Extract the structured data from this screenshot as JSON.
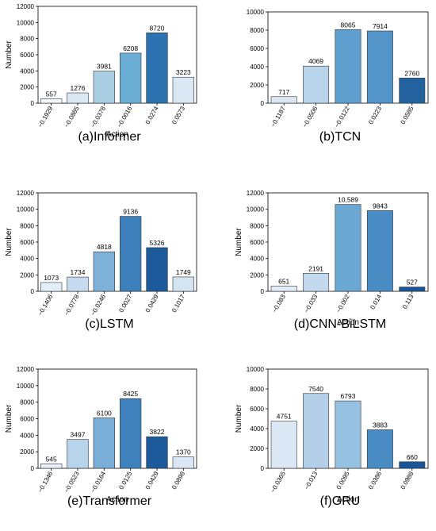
{
  "chart_data": [
    {
      "type": "bar",
      "caption": "(a)Informer",
      "xlabel": "Action",
      "ylabel": "Number",
      "ylim": [
        0,
        12000
      ],
      "yticks": [
        0,
        2000,
        4000,
        6000,
        8000,
        10000,
        12000
      ],
      "categories": [
        "−0.1929",
        "−0.0885",
        "−0.0378",
        "−0.0016",
        "0.0274",
        "0.0573"
      ],
      "values": [
        557,
        1276,
        3981,
        6208,
        8720,
        3223
      ],
      "value_labels": [
        "557",
        "1276",
        "3981",
        "6208",
        "8720",
        "3223"
      ],
      "colors": [
        "#f3f8fd",
        "#dae8f6",
        "#aacfe5",
        "#6aaed6",
        "#2c72b0",
        "#dae8f6"
      ]
    },
    {
      "type": "bar",
      "caption": "(b)TCN",
      "xlabel": "",
      "ylabel": "",
      "ylim": [
        0,
        10000
      ],
      "yticks": [
        0,
        2000,
        4000,
        6000,
        8000,
        10000
      ],
      "categories": [
        "−0.1187",
        "−0.0506",
        "−0.0122",
        "0.0223",
        "0.0585"
      ],
      "values": [
        717,
        4069,
        8065,
        7914,
        2760
      ],
      "value_labels": [
        "717",
        "4069",
        "8065",
        "7914",
        "2760"
      ],
      "colors": [
        "#dae8f6",
        "#b7d4ea",
        "#5e9fcf",
        "#5394c9",
        "#23629f"
      ]
    },
    {
      "type": "bar",
      "caption": "(c)LSTM",
      "xlabel": "",
      "ylabel": "Number",
      "ylim": [
        0,
        12000
      ],
      "yticks": [
        0,
        2000,
        4000,
        6000,
        8000,
        10000,
        12000
      ],
      "categories": [
        "−0.1406",
        "−0.0778",
        "−0.0246",
        "0.0027",
        "0.0429",
        "0.1017"
      ],
      "values": [
        1073,
        1734,
        4818,
        9136,
        5326,
        1749
      ],
      "value_labels": [
        "1073",
        "1734",
        "4818",
        "9136",
        "5326",
        "1749"
      ],
      "colors": [
        "#e4eef9",
        "#c6dbef",
        "#7fb2d9",
        "#3d80bb",
        "#1d5a9c",
        "#d3e4f3"
      ]
    },
    {
      "type": "bar",
      "caption": "(d)CNN-BiLSTM",
      "xlabel": "Action",
      "ylabel": "Number",
      "ylim": [
        0,
        12000
      ],
      "yticks": [
        0,
        2000,
        4000,
        6000,
        8000,
        10000,
        12000
      ],
      "categories": [
        "−0.083",
        "−0.033",
        "−0.002",
        "0.014",
        "0.113"
      ],
      "values": [
        651,
        2191,
        10589,
        9843,
        527
      ],
      "value_labels": [
        "651",
        "2191",
        "10,589",
        "9843",
        "527"
      ],
      "colors": [
        "#e1edf8",
        "#c2d9ee",
        "#6ba8d3",
        "#4a8cc4",
        "#1a5597"
      ]
    },
    {
      "type": "bar",
      "caption": "(e)Transformer",
      "xlabel": "Action",
      "ylabel": "Number",
      "ylim": [
        0,
        12000
      ],
      "yticks": [
        0,
        2000,
        4000,
        6000,
        8000,
        10000,
        12000
      ],
      "categories": [
        "−0.1346",
        "−0.0523",
        "−0.0164",
        "0.0125",
        "0.0429",
        "0.0898"
      ],
      "values": [
        545,
        3497,
        6100,
        8425,
        3822,
        1370
      ],
      "value_labels": [
        "545",
        "3497",
        "6100",
        "8425",
        "3822",
        "1370"
      ],
      "colors": [
        "#e8f1fa",
        "#b7d4ea",
        "#79aed8",
        "#3f81bd",
        "#1d5a9c",
        "#dae8f6"
      ]
    },
    {
      "type": "bar",
      "caption": "(f)GRU",
      "xlabel": "Action",
      "ylabel": "Number",
      "ylim": [
        0,
        10000
      ],
      "yticks": [
        0,
        2000,
        4000,
        6000,
        8000,
        10000
      ],
      "categories": [
        "−0.0365",
        "−0.013",
        "0.0095",
        "0.0386",
        "0.0988"
      ],
      "values": [
        4751,
        7540,
        6793,
        3883,
        660
      ],
      "value_labels": [
        "4751",
        "7540",
        "6793",
        "3883",
        "660"
      ],
      "colors": [
        "#dae8f6",
        "#b3d0e8",
        "#96c1e0",
        "#4a8cc4",
        "#1a5597"
      ]
    }
  ]
}
